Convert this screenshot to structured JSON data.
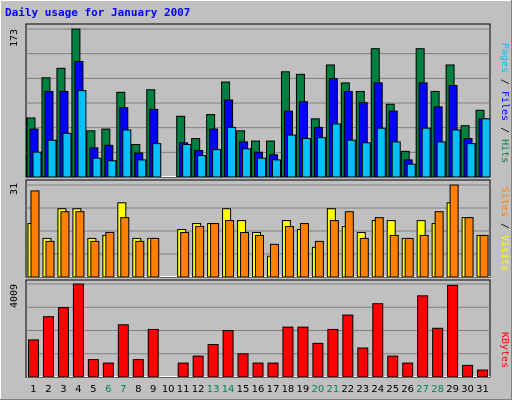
{
  "colors": {
    "background": "#c0c0c0",
    "title": "#0000ff",
    "weekday": "#000000",
    "weekend": "#00805c",
    "hits": "#008040",
    "files": "#0000ff",
    "pages": "#00c0ff",
    "visits": "#ffff00",
    "sites": "#ff8000",
    "kbytes": "#ff0000"
  },
  "chart_data": {
    "type": "bar",
    "title": "Daily usage for January 2007",
    "x": [
      "1",
      "2",
      "3",
      "4",
      "5",
      "6",
      "7",
      "8",
      "9",
      "10",
      "11",
      "12",
      "13",
      "14",
      "15",
      "16",
      "17",
      "18",
      "19",
      "20",
      "21",
      "22",
      "23",
      "24",
      "25",
      "26",
      "27",
      "28",
      "29",
      "30",
      "31"
    ],
    "weekend_days": [
      "6",
      "7",
      "13",
      "14",
      "20",
      "21",
      "27",
      "28"
    ],
    "panels": [
      {
        "name": "hits-files-pages",
        "ymax_label": "173",
        "ymax": 173,
        "legend": {
          "pages": "Pages",
          "files": "Files",
          "hits": "Hits",
          "sep": " / "
        },
        "series": [
          {
            "name": "Hits",
            "values": [
              69,
              116,
              127,
              173,
              54,
              56,
              99,
              38,
              102,
              0,
              71,
              45,
              73,
              111,
              54,
              42,
              42,
              123,
              120,
              68,
              131,
              110,
              100,
              150,
              85,
              30,
              150,
              100,
              131,
              60,
              78
            ]
          },
          {
            "name": "Files",
            "values": [
              56,
              100,
              100,
              135,
              34,
              37,
              81,
              28,
              79,
              0,
              40,
              31,
              56,
              90,
              41,
              29,
              26,
              77,
              88,
              58,
              115,
              100,
              87,
              110,
              77,
              20,
              110,
              82,
              107,
              45,
              68
            ]
          },
          {
            "name": "Pages",
            "values": [
              29,
              43,
              51,
              101,
              22,
              19,
              55,
              20,
              39,
              0,
              38,
              25,
              32,
              58,
              33,
              22,
              20,
              49,
              45,
              46,
              62,
              43,
              40,
              57,
              41,
              15,
              57,
              41,
              55,
              39,
              68
            ]
          }
        ]
      },
      {
        "name": "visits-sites",
        "ymax_label": "31",
        "ymax": 31,
        "legend": {
          "sites": "Sites",
          "visits": "Visits",
          "sep": " / "
        },
        "series": [
          {
            "name": "Visits",
            "values": [
              18,
              13,
              23,
              23,
              13,
              14,
              25,
              13,
              13,
              0,
              16,
              18,
              18,
              23,
              19,
              15,
              7,
              19,
              16,
              10,
              23,
              17,
              15,
              19,
              19,
              13,
              19,
              18,
              25,
              20,
              14
            ]
          },
          {
            "name": "Sites",
            "values": [
              29,
              12,
              22,
              22,
              12,
              15,
              20,
              12,
              13,
              0,
              15,
              17,
              18,
              19,
              15,
              14,
              11,
              17,
              18,
              12,
              19,
              22,
              13,
              20,
              14,
              13,
              14,
              22,
              31,
              20,
              14
            ]
          }
        ]
      },
      {
        "name": "kbytes",
        "ymax_label": "4009",
        "ymax": 4009,
        "legend": {
          "kbytes": "KBytes"
        },
        "series": [
          {
            "name": "KBytes",
            "values": [
              1600,
              2600,
              2990,
              4009,
              750,
              600,
              2250,
              750,
              2050,
              0,
              600,
              900,
              1400,
              2000,
              1000,
              600,
              600,
              2150,
              2150,
              1450,
              2050,
              2670,
              1250,
              3160,
              900,
              600,
              3500,
              2100,
              3950,
              500,
              300
            ]
          }
        ]
      }
    ]
  }
}
